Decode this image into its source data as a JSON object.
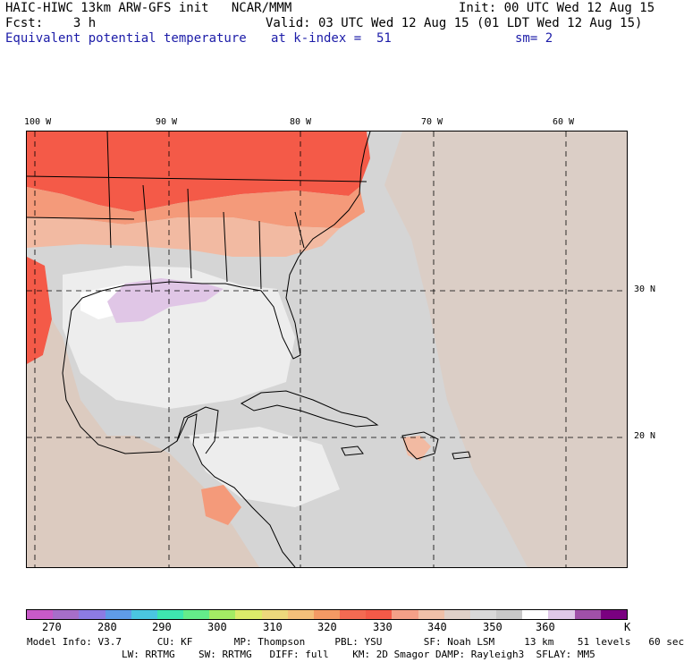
{
  "header": {
    "line1_left": "HAIC-HIWC 13km ARW-GFS init   NCAR/MMM",
    "line1_right": "Init: 00 UTC Wed 12 Aug 15",
    "line2_left": "Fcst:    3 h",
    "line2_right": "Valid: 03 UTC Wed 12 Aug 15 (01 LDT Wed 12 Aug 15)",
    "line3_field": "Equivalent potential temperature",
    "line3_level": "at k-index =  51",
    "line3_smooth": "sm= 2"
  },
  "axes": {
    "lon_labels": [
      "100 W",
      "90 W",
      "80 W",
      "70 W",
      "60 W"
    ],
    "lat_labels": [
      "30 N",
      "20 N"
    ]
  },
  "colorbar": {
    "colors": [
      "#c85ac8",
      "#a66ec9",
      "#8c7be3",
      "#5f9be8",
      "#4ac6e0",
      "#3ee6b0",
      "#64ec8a",
      "#a4ec64",
      "#dcec6a",
      "#ecd87c",
      "#f4c07a",
      "#f49a64",
      "#f46a52",
      "#f45a48",
      "#f4a088",
      "#f0c0a8",
      "#e0d0c8",
      "#d8d8d8",
      "#c8c8c8",
      "#ffffff",
      "#e0c8e8",
      "#a050a8",
      "#7a0080"
    ],
    "ticks": [
      "270",
      "280",
      "290",
      "300",
      "310",
      "320",
      "330",
      "340",
      "350",
      "360"
    ],
    "unit": "K"
  },
  "footer": {
    "line1": "Model Info: V3.7      CU: KF       MP: Thompson     PBL: YSU       SF: Noah LSM     13 km    51 levels   60 sec",
    "line2": "                LW: RRTMG    SW: RRTMG   DIFF: full    KM: 2D Smagor DAMP: Rayleigh3  SFLAY: MM5"
  },
  "map_colors": {
    "ocean": "#d5d5d5",
    "warm_hot": "#f45a48",
    "warm": "#f49a7a",
    "warm_light": "#f2baa2",
    "tan": "#dccbc0",
    "light": "#ededed",
    "white": "#ffffff",
    "lavender": "#e0c6e6",
    "land_line": "#000000"
  }
}
